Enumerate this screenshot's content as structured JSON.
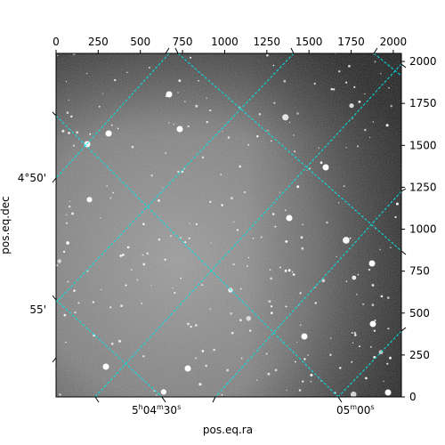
{
  "chart_data": {
    "type": "image",
    "xlabel": "pos.eq.ra",
    "ylabel": "pos.eq.dec",
    "pixel_x_ticks": [
      "0",
      "250",
      "500",
      "750",
      "1000",
      "1250",
      "1500",
      "1750",
      "2000"
    ],
    "pixel_y_ticks": [
      "0",
      "250",
      "500",
      "750",
      "1000",
      "1250",
      "1500",
      "1750",
      "2000"
    ],
    "xlim": [
      0,
      2048
    ],
    "ylim": [
      0,
      2048
    ],
    "ra_ticks": [
      {
        "label_main": "5",
        "sup_h": "h",
        "label_min": "04",
        "sup_m": "m",
        "label_sec": "30",
        "sup_s": "s"
      },
      {
        "label_min": "05",
        "sup_m": "m",
        "label_sec": "00",
        "sup_s": "s"
      }
    ],
    "dec_ticks": [
      "4°50'",
      "55'"
    ],
    "grid": true,
    "grid_color": "#00e5e5",
    "image_style": "grayscale star field"
  }
}
